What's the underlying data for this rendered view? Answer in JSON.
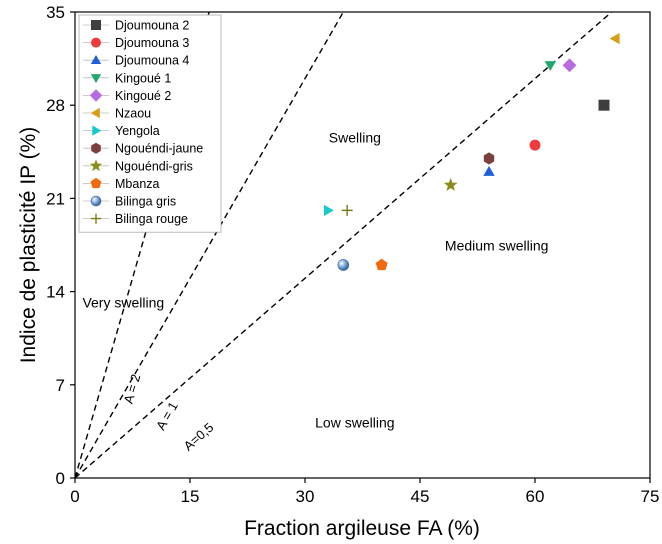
{
  "chart_data": {
    "type": "scatter",
    "xlabel": "Fraction argileuse FA (%)",
    "ylabel": "Indice de plasticité IP (%)",
    "xlim": [
      0,
      75
    ],
    "ylim": [
      0,
      35
    ],
    "xticks": [
      0,
      15,
      30,
      45,
      60,
      75
    ],
    "yticks": [
      0,
      7,
      14,
      21,
      28,
      35
    ],
    "legend_position": "top-left",
    "series": [
      {
        "name": "Djoumouna 2",
        "marker": "square",
        "color": "#3f3f3f",
        "x": [
          69
        ],
        "y": [
          28
        ]
      },
      {
        "name": "Djoumouna 3",
        "marker": "circle",
        "color": "#ee3b3b",
        "x": [
          60
        ],
        "y": [
          25
        ]
      },
      {
        "name": "Djoumouna 4",
        "marker": "triangle-up",
        "color": "#1f5fd8",
        "x": [
          54
        ],
        "y": [
          23
        ]
      },
      {
        "name": "Kingoué 1",
        "marker": "triangle-down",
        "color": "#22a86a",
        "x": [
          62
        ],
        "y": [
          31
        ]
      },
      {
        "name": "Kingoué 2",
        "marker": "diamond",
        "color": "#b86ae0",
        "x": [
          64.5
        ],
        "y": [
          31
        ]
      },
      {
        "name": "Nzaou",
        "marker": "triangle-left",
        "color": "#d4a017",
        "x": [
          70.5
        ],
        "y": [
          33
        ]
      },
      {
        "name": "Yengola",
        "marker": "triangle-right",
        "color": "#17c9c9",
        "x": [
          33
        ],
        "y": [
          20.1
        ]
      },
      {
        "name": "Ngouéndi-jaune",
        "marker": "hexagon",
        "color": "#7a4040",
        "x": [
          54
        ],
        "y": [
          24
        ]
      },
      {
        "name": "Ngouéndi-gris",
        "marker": "star",
        "color": "#8c8c1a",
        "x": [
          49
        ],
        "y": [
          22
        ]
      },
      {
        "name": "Mbanza",
        "marker": "pentagon",
        "color": "#f06a0f",
        "x": [
          40
        ],
        "y": [
          16
        ]
      },
      {
        "name": "Bilinga gris",
        "marker": "sphere",
        "color": "#5b8cc9",
        "x": [
          35
        ],
        "y": [
          16
        ]
      },
      {
        "name": "Bilinga rouge",
        "marker": "plus",
        "color": "#7a7a1a",
        "x": [
          35.5
        ],
        "y": [
          20.1
        ]
      }
    ],
    "reference_lines": [
      {
        "label": "A = 2",
        "slope": 2
      },
      {
        "label": "A = 1",
        "slope": 1
      },
      {
        "label": "A=0,5",
        "slope": 0.5
      }
    ],
    "regions": [
      {
        "label": "Very swelling"
      },
      {
        "label": "Swelling"
      },
      {
        "label": "Medium swelling"
      },
      {
        "label": "Low swelling"
      }
    ]
  }
}
